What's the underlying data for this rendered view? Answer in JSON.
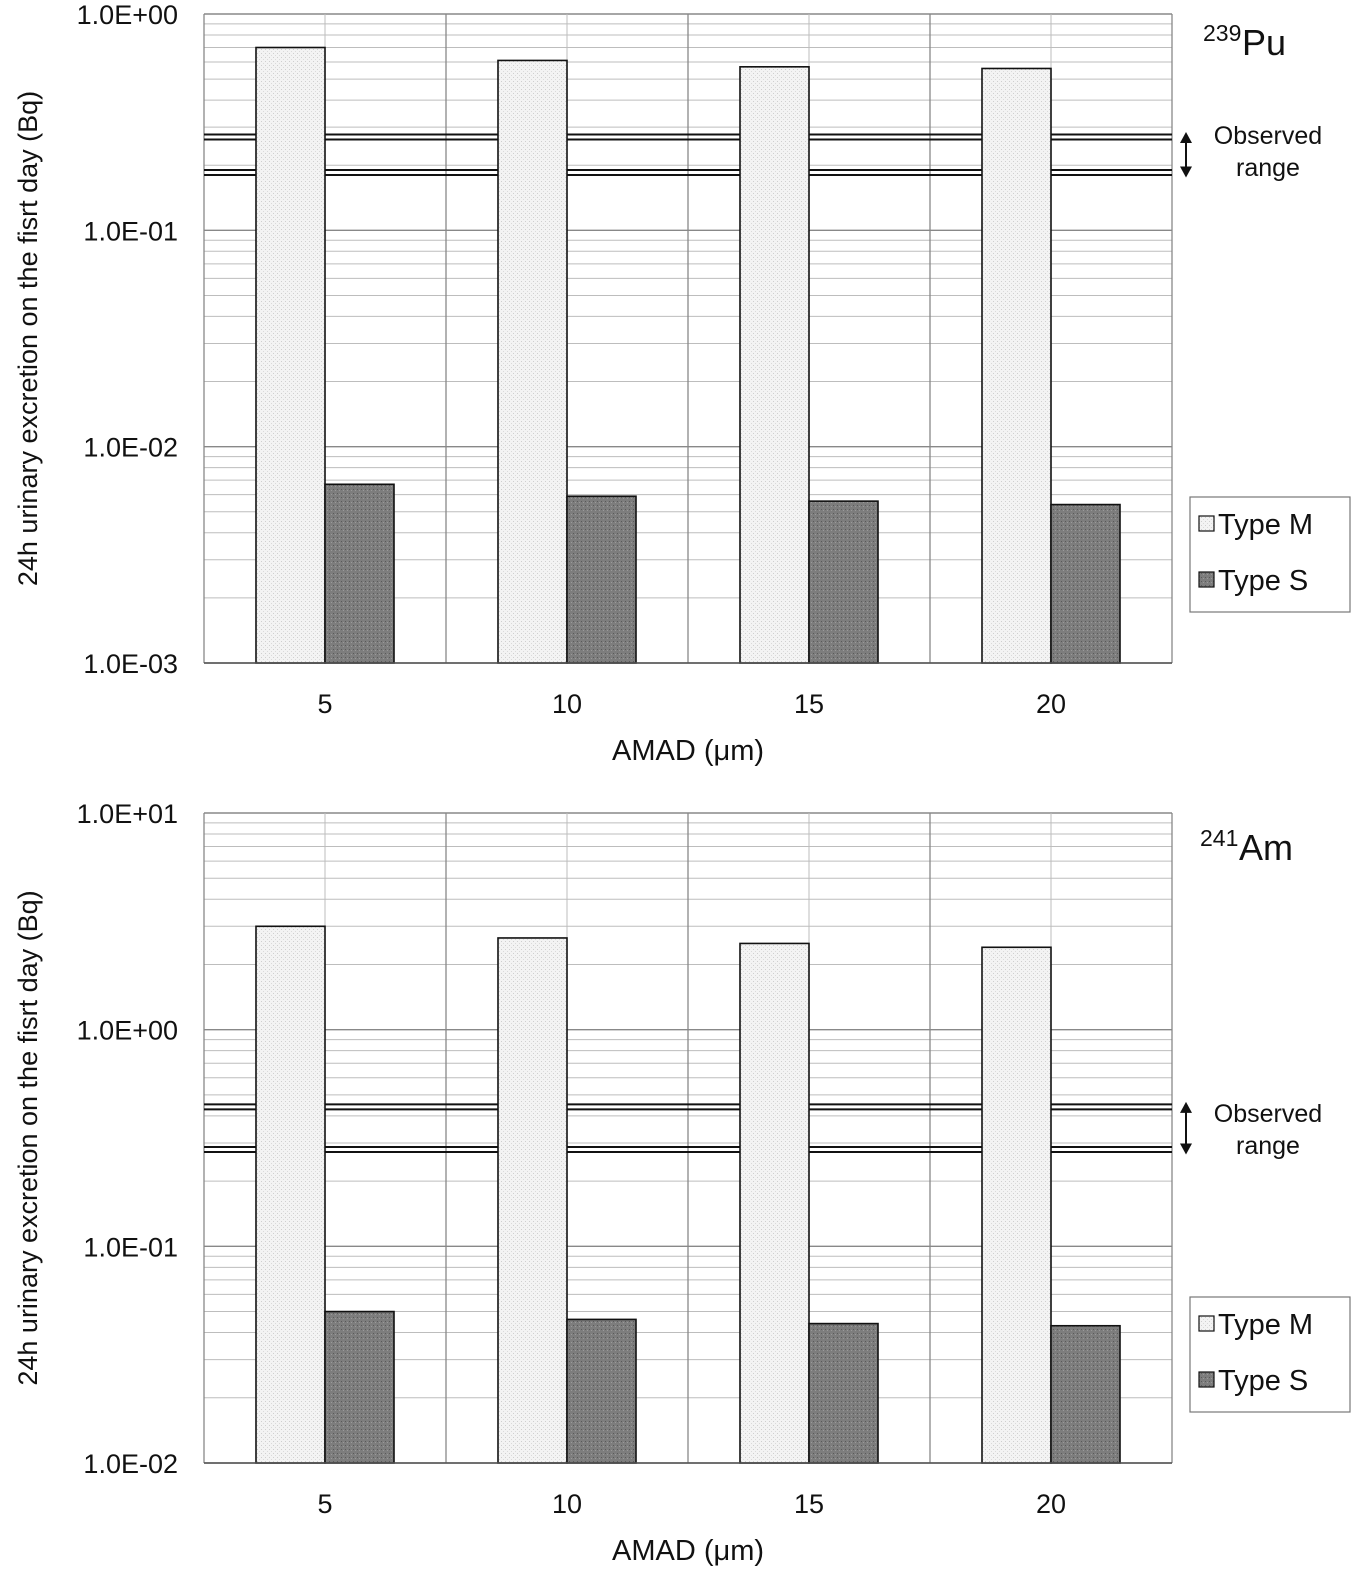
{
  "colors": {
    "type_m": "#f1f1f1",
    "type_s": "#7b7b7b",
    "grid_major": "#888888",
    "grid_minor": "#bdbdbd",
    "bar_stroke": "#111111"
  },
  "chart_data": [
    {
      "type": "bar",
      "isotope": {
        "mass": "239",
        "symbol": "Pu"
      },
      "categories": [
        "5",
        "10",
        "15",
        "20"
      ],
      "series": [
        {
          "name": "Type M",
          "values": [
            0.7,
            0.61,
            0.57,
            0.56
          ]
        },
        {
          "name": "Type S",
          "values": [
            0.0067,
            0.0059,
            0.0056,
            0.0054
          ]
        }
      ],
      "y_scale": "log",
      "ylim": [
        0.001,
        1.0
      ],
      "y_tick_values": [
        0.001,
        0.01,
        0.1,
        1.0
      ],
      "y_tick_labels": [
        "1.0E-03",
        "1.0E-02",
        "1.0E-01",
        "1.0E+00"
      ],
      "ylabel": "24h urinary excretion on the fisrt day (Bq)",
      "xlabel": "AMAD (μm)",
      "observed_range": {
        "label_line1": "Observed",
        "label_line2": "range",
        "low": 0.185,
        "high": 0.27
      },
      "legend": {
        "position": "right",
        "items": [
          "Type M",
          "Type S"
        ]
      }
    },
    {
      "type": "bar",
      "isotope": {
        "mass": "241",
        "symbol": "Am"
      },
      "categories": [
        "5",
        "10",
        "15",
        "20"
      ],
      "series": [
        {
          "name": "Type M",
          "values": [
            3.0,
            2.65,
            2.5,
            2.4
          ]
        },
        {
          "name": "Type S",
          "values": [
            0.05,
            0.046,
            0.044,
            0.043
          ]
        }
      ],
      "y_scale": "log",
      "ylim": [
        0.01,
        10.0
      ],
      "y_tick_values": [
        0.01,
        0.1,
        1.0,
        10.0
      ],
      "y_tick_labels": [
        "1.0E-02",
        "1.0E-01",
        "1.0E+00",
        "1.0E+01"
      ],
      "ylabel": "24h urinary excretion on the fisrt day (Bq)",
      "xlabel": "AMAD (μm)",
      "observed_range": {
        "label_line1": "Observed",
        "label_line2": "range",
        "low": 0.28,
        "high": 0.44
      },
      "legend": {
        "position": "right",
        "items": [
          "Type M",
          "Type S"
        ]
      }
    }
  ]
}
